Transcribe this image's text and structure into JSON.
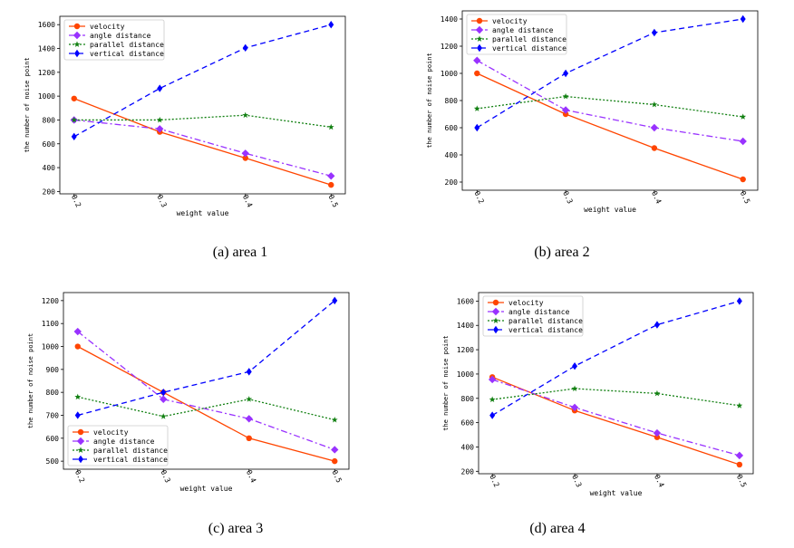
{
  "colors": {
    "velocity": "#ff4500",
    "angle": "#9932ff",
    "parallel": "#128012",
    "vertical": "#0000ff"
  },
  "chart_data": [
    {
      "type": "line",
      "caption": "(a) area 1",
      "xlabel": "weight value",
      "ylabel": "the number of noise point",
      "categories": [
        "0.2",
        "0.3",
        "0.4",
        "0.5"
      ],
      "yticks": [
        200,
        400,
        600,
        800,
        1000,
        1200,
        1400,
        1600
      ],
      "ylim": [
        180,
        1670
      ],
      "legend": "upper-left",
      "series": [
        {
          "name": "velocity",
          "values": [
            980,
            700,
            480,
            255
          ]
        },
        {
          "name": "angle distance",
          "values": [
            800,
            725,
            520,
            330
          ]
        },
        {
          "name": "parallel distance",
          "values": [
            800,
            800,
            840,
            740
          ]
        },
        {
          "name": "vertical distance",
          "values": [
            660,
            1065,
            1405,
            1600
          ]
        }
      ]
    },
    {
      "type": "line",
      "caption": "(b) area 2",
      "xlabel": "weight value",
      "ylabel": "the number of noise point",
      "categories": [
        "0.2",
        "0.3",
        "0.4",
        "0.5"
      ],
      "yticks": [
        200,
        400,
        600,
        800,
        1000,
        1200,
        1400
      ],
      "ylim": [
        140,
        1460
      ],
      "legend": "upper-left",
      "series": [
        {
          "name": "velocity",
          "values": [
            1000,
            700,
            450,
            220
          ]
        },
        {
          "name": "angle distance",
          "values": [
            1095,
            730,
            600,
            500
          ]
        },
        {
          "name": "parallel distance",
          "values": [
            740,
            830,
            770,
            680
          ]
        },
        {
          "name": "vertical distance",
          "values": [
            600,
            1000,
            1300,
            1400
          ]
        }
      ]
    },
    {
      "type": "line",
      "caption": "(c) area 3",
      "xlabel": "weight value",
      "ylabel": "the number of noise point",
      "categories": [
        "0.2",
        "0.3",
        "0.4",
        "0.5"
      ],
      "yticks": [
        500,
        600,
        700,
        800,
        900,
        1000,
        1100,
        1200
      ],
      "ylim": [
        465,
        1235
      ],
      "legend": "lower-left",
      "series": [
        {
          "name": "velocity",
          "values": [
            1000,
            800,
            600,
            500
          ]
        },
        {
          "name": "angle distance",
          "values": [
            1065,
            770,
            685,
            550
          ]
        },
        {
          "name": "parallel distance",
          "values": [
            780,
            695,
            770,
            680
          ]
        },
        {
          "name": "vertical distance",
          "values": [
            700,
            800,
            890,
            1200
          ]
        }
      ]
    },
    {
      "type": "line",
      "caption": "(d) area 4",
      "xlabel": "weight value",
      "ylabel": "the number of noise point",
      "categories": [
        "0.2",
        "0.3",
        "0.4",
        "0.5"
      ],
      "yticks": [
        200,
        400,
        600,
        800,
        1000,
        1200,
        1400,
        1600
      ],
      "ylim": [
        180,
        1670
      ],
      "legend": "upper-left",
      "series": [
        {
          "name": "velocity",
          "values": [
            975,
            700,
            480,
            255
          ]
        },
        {
          "name": "angle distance",
          "values": [
            955,
            725,
            515,
            330
          ]
        },
        {
          "name": "parallel distance",
          "values": [
            790,
            880,
            840,
            740
          ]
        },
        {
          "name": "vertical distance",
          "values": [
            660,
            1065,
            1405,
            1600
          ]
        }
      ]
    }
  ]
}
